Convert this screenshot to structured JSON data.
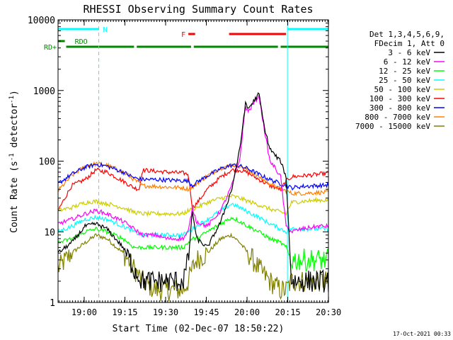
{
  "chart_data": {
    "type": "line",
    "title": "RHESSI Observing Summary Count Rates",
    "xlabel": "Start Time (02-Dec-07 18:50:22)",
    "ylabel_main": "Count Rate (s",
    "ylabel_sup1": "-1",
    "ylabel_mid": " detector",
    "ylabel_sup2": "-1",
    "ylabel_end": ")",
    "x_start_minutes": 0,
    "x_end_minutes": 99.6,
    "xlim_labels": [
      "18:50:22",
      "20:30:00"
    ],
    "ylim": [
      1,
      10000
    ],
    "yscale": "log",
    "x_ticks": [
      {
        "label": "19:00",
        "minutes": 9.63
      },
      {
        "label": "19:15",
        "minutes": 24.63
      },
      {
        "label": "19:30",
        "minutes": 39.63
      },
      {
        "label": "19:45",
        "minutes": 54.63
      },
      {
        "label": "20:00",
        "minutes": 69.63
      },
      {
        "label": "20:15",
        "minutes": 84.63
      },
      {
        "label": "20:30",
        "minutes": 99.63
      }
    ],
    "y_ticks": [
      {
        "label": "1",
        "value": 1
      },
      {
        "label": "10",
        "value": 10
      },
      {
        "label": "100",
        "value": 100
      },
      {
        "label": "1000",
        "value": 1000
      },
      {
        "label": "10000",
        "value": 10000
      }
    ],
    "legend": {
      "placement": "right",
      "header": [
        "Det 1,3,4,5,6,9,",
        "FDecim 1, Att 0"
      ],
      "entries": [
        {
          "name": "3 - 6 keV",
          "color": "#000000"
        },
        {
          "name": "6 - 12 keV",
          "color": "#ff00ff"
        },
        {
          "name": "12 - 25 keV",
          "color": "#00ff00"
        },
        {
          "name": "25 - 50 keV",
          "color": "#00ffff"
        },
        {
          "name": "50 - 100 keV",
          "color": "#cccc00"
        },
        {
          "name": "100 - 300 keV",
          "color": "#ff0000"
        },
        {
          "name": "300 - 800 keV",
          "color": "#0000ff"
        },
        {
          "name": "800 - 7000 keV",
          "color": "#ff8000"
        },
        {
          "name": "7000 - 15000 keV",
          "color": "#808000"
        }
      ]
    },
    "flags": [
      {
        "label": "N",
        "color": "#00ffff",
        "segments": [
          [
            0,
            15
          ],
          [
            84.5,
            99.6
          ]
        ]
      },
      {
        "label": "F",
        "color": "#ff0000",
        "segments": [
          [
            48,
            50.5
          ],
          [
            63,
            84
          ]
        ]
      },
      {
        "label": "RDO",
        "color": "#008800",
        "segments": [
          [
            0,
            2.5
          ]
        ]
      },
      {
        "label": "RD+",
        "color": "#008800",
        "segments": [
          [
            3,
            28
          ],
          [
            29,
            49
          ],
          [
            50,
            81
          ],
          [
            82,
            99.6
          ]
        ]
      }
    ],
    "vlines": [
      {
        "minutes": 0,
        "style": "solid",
        "color": "#00ffff"
      },
      {
        "minutes": 15,
        "style": "dash",
        "color": "#00ffff"
      },
      {
        "minutes": 84.5,
        "style": "solid",
        "color": "#00ffff"
      },
      {
        "minutes": 99.6,
        "style": "dash",
        "color": "#00ffff"
      }
    ],
    "series": [
      {
        "name": "3 - 6 keV",
        "color": "#000000",
        "x": [
          0,
          5,
          10,
          14,
          18,
          24,
          28,
          31,
          36,
          40,
          46,
          48,
          49.5,
          51,
          55,
          60,
          64,
          67,
          69,
          70,
          72,
          74,
          76,
          78,
          80,
          82,
          84,
          86,
          90,
          96,
          99.6
        ],
        "y": [
          5,
          7,
          12,
          13,
          11,
          6,
          3,
          2,
          2,
          2,
          2,
          4,
          20,
          8,
          6,
          14,
          40,
          150,
          650,
          550,
          700,
          900,
          300,
          150,
          120,
          100,
          60,
          2,
          2,
          2,
          2
        ]
      },
      {
        "name": "6 - 12 keV",
        "color": "#ff00ff",
        "x": [
          0,
          5,
          10,
          14,
          18,
          24,
          28,
          31,
          36,
          40,
          46,
          48,
          49.5,
          51,
          55,
          60,
          64,
          67,
          69,
          70,
          72,
          74,
          76,
          78,
          80,
          82,
          84,
          86,
          90,
          96,
          99.6
        ],
        "y": [
          13,
          15,
          18,
          20,
          18,
          14,
          11,
          9,
          9,
          8,
          8,
          10,
          22,
          14,
          12,
          20,
          45,
          110,
          600,
          500,
          650,
          850,
          280,
          100,
          80,
          60,
          12,
          10,
          11,
          12,
          12
        ]
      },
      {
        "name": "12 - 25 keV",
        "color": "#00ff00",
        "x": [
          0,
          5,
          10,
          14,
          18,
          24,
          28,
          31,
          36,
          40,
          46,
          48,
          49.5,
          51,
          55,
          60,
          64,
          67,
          70,
          74,
          78,
          82,
          84,
          86,
          90,
          96,
          99.6
        ],
        "y": [
          7,
          8,
          10,
          11,
          10,
          8,
          6,
          6,
          6,
          6,
          6,
          7,
          8,
          8,
          10,
          13,
          16,
          14,
          12,
          10,
          8,
          7,
          6,
          4,
          4,
          4,
          4
        ]
      },
      {
        "name": "25 - 50 keV",
        "color": "#00ffff",
        "x": [
          0,
          5,
          10,
          14,
          18,
          24,
          28,
          31,
          36,
          40,
          46,
          48,
          49.5,
          51,
          55,
          60,
          64,
          67,
          70,
          74,
          78,
          82,
          84,
          86,
          90,
          96,
          99.6
        ],
        "y": [
          10,
          12,
          15,
          16,
          15,
          12,
          10,
          9,
          9,
          9,
          9,
          10,
          11,
          12,
          15,
          20,
          25,
          22,
          19,
          16,
          13,
          11,
          10,
          11,
          11,
          11,
          11
        ]
      },
      {
        "name": "50 - 100 keV",
        "color": "#cccc00",
        "x": [
          0,
          5,
          10,
          14,
          18,
          24,
          28,
          31,
          36,
          40,
          46,
          48,
          49.5,
          51,
          55,
          60,
          64,
          67,
          70,
          74,
          78,
          82,
          84,
          86,
          90,
          96,
          99.6
        ],
        "y": [
          20,
          22,
          26,
          27,
          25,
          22,
          19,
          18,
          18,
          18,
          18,
          20,
          21,
          22,
          26,
          30,
          32,
          30,
          27,
          24,
          21,
          19,
          18,
          26,
          27,
          28,
          28
        ]
      },
      {
        "name": "100 - 300 keV",
        "color": "#ff0000",
        "x": [
          0,
          5,
          10,
          14,
          18,
          24,
          28,
          30,
          31,
          36,
          40,
          46,
          48,
          49.5,
          51,
          55,
          60,
          64,
          67,
          70,
          74,
          78,
          82,
          84,
          86,
          90,
          96,
          99.6
        ],
        "y": [
          20,
          45,
          55,
          75,
          70,
          52,
          42,
          40,
          75,
          72,
          70,
          68,
          65,
          22,
          25,
          40,
          60,
          75,
          75,
          68,
          55,
          45,
          40,
          52,
          60,
          62,
          65,
          68
        ]
      },
      {
        "name": "300 - 800 keV",
        "color": "#0000ff",
        "x": [
          0,
          5,
          10,
          14,
          18,
          24,
          28,
          31,
          36,
          40,
          46,
          48,
          49.5,
          51,
          55,
          60,
          64,
          67,
          70,
          74,
          78,
          82,
          84,
          86,
          90,
          96,
          99.6
        ],
        "y": [
          48,
          65,
          82,
          90,
          85,
          70,
          58,
          55,
          55,
          54,
          53,
          52,
          45,
          50,
          62,
          78,
          88,
          85,
          78,
          65,
          55,
          48,
          45,
          42,
          44,
          45,
          46
        ]
      },
      {
        "name": "800 - 7000 keV",
        "color": "#ff8000",
        "x": [
          0,
          5,
          10,
          14,
          18,
          24,
          28,
          31,
          36,
          40,
          46,
          48,
          49.5,
          51,
          55,
          60,
          64,
          67,
          70,
          74,
          78,
          82,
          84,
          86,
          90,
          96,
          99.6
        ],
        "y": [
          38,
          62,
          85,
          92,
          88,
          70,
          55,
          45,
          44,
          43,
          42,
          40,
          42,
          48,
          62,
          80,
          88,
          85,
          75,
          60,
          48,
          40,
          38,
          35,
          35,
          36,
          36
        ]
      },
      {
        "name": "7000 - 15000 keV",
        "color": "#808000",
        "x": [
          0,
          5,
          10,
          14,
          18,
          24,
          28,
          31,
          36,
          40,
          46,
          48,
          49.5,
          51,
          55,
          60,
          64,
          67,
          70,
          74,
          78,
          82,
          84,
          86,
          90,
          96,
          99.6
        ],
        "y": [
          3,
          5,
          7,
          9,
          8,
          5,
          3,
          2,
          1.5,
          1.5,
          1.5,
          2,
          3,
          4,
          5,
          8,
          9,
          7,
          5,
          3,
          2,
          1.5,
          1.5,
          2,
          2,
          2,
          2
        ]
      }
    ]
  },
  "footer": {
    "timestamp": "17-Oct-2021 00:33"
  }
}
